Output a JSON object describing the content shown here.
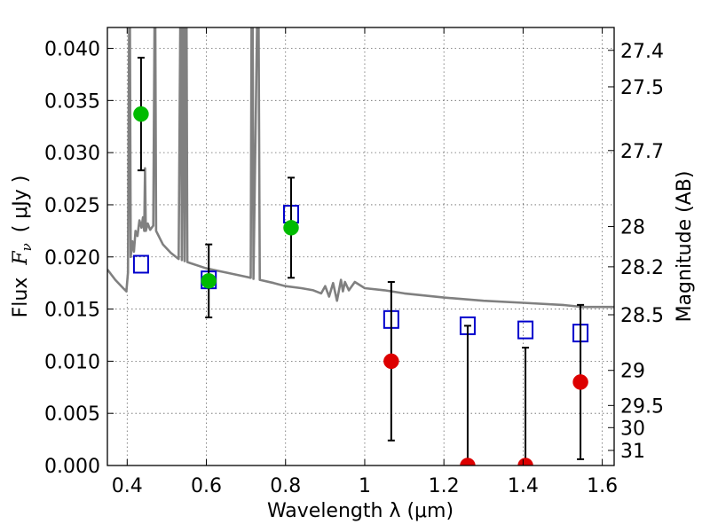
{
  "chart_data": {
    "type": "scatter",
    "xlabel": "Wavelength  λ (μm)",
    "ylabel_left": "Flux  Fν  ( μJy )",
    "ylabel_left_prefix": "Flux",
    "ylabel_left_symbol": "F",
    "ylabel_left_subscript": "ν",
    "ylabel_left_unit": "( μJy )",
    "ylabel_right": "Magnitude (AB)",
    "xlim": [
      0.35,
      1.63
    ],
    "ylim": [
      0.0,
      0.042
    ],
    "grid": true,
    "x_ticks": [
      {
        "value": 0.4,
        "label": "0.4"
      },
      {
        "value": 0.6,
        "label": "0.6"
      },
      {
        "value": 0.8,
        "label": "0.8"
      },
      {
        "value": 1.0,
        "label": "1"
      },
      {
        "value": 1.2,
        "label": "1.2"
      },
      {
        "value": 1.4,
        "label": "1.4"
      },
      {
        "value": 1.6,
        "label": "1.6"
      }
    ],
    "y_ticks": [
      {
        "value": 0.0,
        "label": "0.000"
      },
      {
        "value": 0.005,
        "label": "0.005"
      },
      {
        "value": 0.01,
        "label": "0.010"
      },
      {
        "value": 0.015,
        "label": "0.015"
      },
      {
        "value": 0.02,
        "label": "0.020"
      },
      {
        "value": 0.025,
        "label": "0.025"
      },
      {
        "value": 0.03,
        "label": "0.030"
      },
      {
        "value": 0.035,
        "label": "0.035"
      },
      {
        "value": 0.04,
        "label": "0.040"
      }
    ],
    "mag_ticks": [
      {
        "value": 27.4,
        "label": "27.4"
      },
      {
        "value": 27.5,
        "label": "27.5"
      },
      {
        "value": 27.7,
        "label": "27.7"
      },
      {
        "value": 28.0,
        "label": "28"
      },
      {
        "value": 28.2,
        "label": "28.2"
      },
      {
        "value": 28.5,
        "label": "28.5"
      },
      {
        "value": 29.0,
        "label": "29"
      },
      {
        "value": 29.5,
        "label": "29.5"
      },
      {
        "value": 30.0,
        "label": "30"
      },
      {
        "value": 31.0,
        "label": "31"
      }
    ],
    "model_spectrum": {
      "color": "#808080",
      "points": [
        [
          0.35,
          0.0188
        ],
        [
          0.37,
          0.0178
        ],
        [
          0.39,
          0.017
        ],
        [
          0.398,
          0.0167
        ],
        [
          0.402,
          0.0185
        ],
        [
          0.405,
          0.042
        ],
        [
          0.407,
          0.042
        ],
        [
          0.409,
          0.02
        ],
        [
          0.413,
          0.0215
        ],
        [
          0.417,
          0.0205
        ],
        [
          0.421,
          0.0225
        ],
        [
          0.426,
          0.022
        ],
        [
          0.431,
          0.0235
        ],
        [
          0.436,
          0.0228
        ],
        [
          0.44,
          0.0238
        ],
        [
          0.443,
          0.0225
        ],
        [
          0.445,
          0.0285
        ],
        [
          0.447,
          0.0225
        ],
        [
          0.452,
          0.0232
        ],
        [
          0.458,
          0.0226
        ],
        [
          0.466,
          0.023
        ],
        [
          0.469,
          0.042
        ],
        [
          0.471,
          0.042
        ],
        [
          0.473,
          0.0225
        ],
        [
          0.49,
          0.0212
        ],
        [
          0.51,
          0.0204
        ],
        [
          0.53,
          0.0198
        ],
        [
          0.534,
          0.042
        ],
        [
          0.536,
          0.042
        ],
        [
          0.538,
          0.0197
        ],
        [
          0.541,
          0.042
        ],
        [
          0.543,
          0.042
        ],
        [
          0.545,
          0.0196
        ],
        [
          0.548,
          0.042
        ],
        [
          0.55,
          0.042
        ],
        [
          0.552,
          0.0195
        ],
        [
          0.6,
          0.0189
        ],
        [
          0.65,
          0.0185
        ],
        [
          0.7,
          0.0181
        ],
        [
          0.712,
          0.018
        ],
        [
          0.714,
          0.042
        ],
        [
          0.717,
          0.042
        ],
        [
          0.719,
          0.0179
        ],
        [
          0.728,
          0.042
        ],
        [
          0.732,
          0.042
        ],
        [
          0.735,
          0.0178
        ],
        [
          0.77,
          0.0175
        ],
        [
          0.8,
          0.0172
        ],
        [
          0.84,
          0.017
        ],
        [
          0.87,
          0.0168
        ],
        [
          0.89,
          0.0165
        ],
        [
          0.9,
          0.0172
        ],
        [
          0.91,
          0.0162
        ],
        [
          0.92,
          0.0175
        ],
        [
          0.93,
          0.0158
        ],
        [
          0.94,
          0.0178
        ],
        [
          0.945,
          0.0167
        ],
        [
          0.95,
          0.0176
        ],
        [
          0.96,
          0.0168
        ],
        [
          0.975,
          0.0176
        ],
        [
          1.0,
          0.017
        ],
        [
          1.05,
          0.0168
        ],
        [
          1.1,
          0.0165
        ],
        [
          1.2,
          0.0161
        ],
        [
          1.3,
          0.0158
        ],
        [
          1.4,
          0.0156
        ],
        [
          1.5,
          0.0154
        ],
        [
          1.55,
          0.0152
        ],
        [
          1.63,
          0.0152
        ]
      ]
    },
    "series": [
      {
        "marker": "filled-circle",
        "color_detected": "#00bb00",
        "color_undetected": "#dd0000",
        "points": [
          {
            "x": 0.435,
            "y": 0.0337,
            "yerr": 0.0054,
            "status": "detected"
          },
          {
            "x": 0.606,
            "y": 0.0177,
            "yerr": 0.0035,
            "status": "detected"
          },
          {
            "x": 0.814,
            "y": 0.0228,
            "yerr": 0.0048,
            "status": "detected"
          },
          {
            "x": 1.067,
            "y": 0.01,
            "yerr": 0.0076,
            "status": "undetected"
          },
          {
            "x": 1.26,
            "y": 0.0,
            "yerr": 0.0134,
            "status": "undetected"
          },
          {
            "x": 1.406,
            "y": 0.0,
            "yerr": 0.0113,
            "status": "undetected"
          },
          {
            "x": 1.545,
            "y": 0.008,
            "yerr": 0.0074,
            "status": "undetected"
          }
        ]
      },
      {
        "marker": "open-square",
        "color": "#0000cc",
        "points": [
          {
            "x": 0.435,
            "y": 0.0193
          },
          {
            "x": 0.606,
            "y": 0.0178
          },
          {
            "x": 0.814,
            "y": 0.0241
          },
          {
            "x": 1.067,
            "y": 0.014
          },
          {
            "x": 1.26,
            "y": 0.0134
          },
          {
            "x": 1.406,
            "y": 0.013
          },
          {
            "x": 1.545,
            "y": 0.0127
          }
        ]
      }
    ]
  }
}
